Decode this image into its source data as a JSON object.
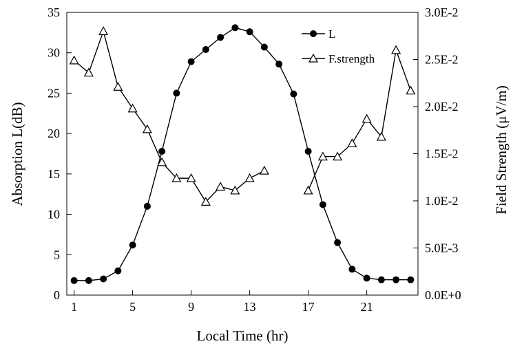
{
  "chart_data": {
    "type": "line",
    "xlabel": "Local Time (hr)",
    "ylabel_left": "Absorption L(dB)",
    "ylabel_right": "Field Strength (μV/m)",
    "xlim": [
      0.5,
      24.5
    ],
    "ylim_left": [
      0,
      35
    ],
    "ylim_right": [
      0,
      0.03
    ],
    "x_ticks": [
      1,
      5,
      9,
      13,
      17,
      21
    ],
    "y_left_ticks": [
      0,
      5,
      10,
      15,
      20,
      25,
      30,
      35
    ],
    "y_right_ticks": [
      {
        "value": 0,
        "label": "0.0E+0"
      },
      {
        "value": 0.005,
        "label": "5.0E-3"
      },
      {
        "value": 0.01,
        "label": "1.0E-2"
      },
      {
        "value": 0.015,
        "label": "1.5E-2"
      },
      {
        "value": 0.02,
        "label": "2.0E-2"
      },
      {
        "value": 0.025,
        "label": "2.5E-2"
      },
      {
        "value": 0.03,
        "label": "3.0E-2"
      }
    ],
    "series": [
      {
        "name": "L",
        "axis": "left",
        "marker": "filled-circle",
        "x": [
          1,
          2,
          3,
          4,
          5,
          6,
          7,
          8,
          9,
          10,
          11,
          12,
          13,
          14,
          15,
          16,
          17,
          18,
          19,
          20,
          21,
          22,
          23,
          24
        ],
        "y": [
          1.8,
          1.8,
          2.0,
          3.0,
          6.2,
          11.0,
          17.8,
          25.0,
          28.9,
          30.4,
          31.9,
          33.1,
          32.6,
          30.7,
          28.6,
          24.9,
          17.8,
          11.2,
          6.5,
          3.2,
          2.1,
          1.9,
          1.9,
          1.9
        ]
      },
      {
        "name": "F.strength",
        "axis": "right",
        "marker": "open-triangle",
        "segments": [
          {
            "x": [
              1,
              2,
              3,
              4,
              5,
              6,
              7,
              8,
              9,
              10,
              11,
              12,
              13,
              14
            ],
            "y": [
              0.0249,
              0.0236,
              0.028,
              0.0221,
              0.0198,
              0.0176,
              0.0141,
              0.0124,
              0.0124,
              0.0099,
              0.0115,
              0.0111,
              0.0124,
              0.0132
            ]
          },
          {
            "x": [
              17,
              18,
              19,
              20,
              21,
              22,
              23,
              24
            ],
            "y": [
              0.0111,
              0.0147,
              0.0147,
              0.0161,
              0.0187,
              0.0168,
              0.026,
              0.0217
            ]
          }
        ]
      }
    ]
  }
}
